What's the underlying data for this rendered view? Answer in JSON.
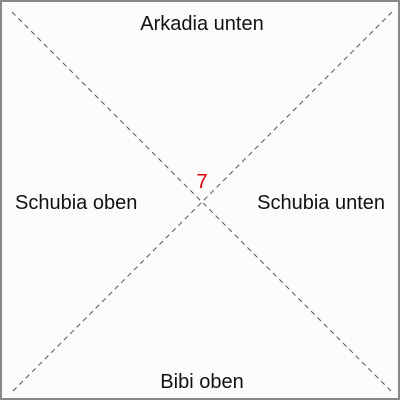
{
  "tile": {
    "top_label": "Arkadia unten",
    "bottom_label": "Bibi oben",
    "left_label": "Schubia oben",
    "right_label": "Schubia unten",
    "center_number": "7"
  },
  "colors": {
    "border": "#888888",
    "diagonal": "#555555",
    "center_number": "#e00000",
    "text": "#111111"
  }
}
